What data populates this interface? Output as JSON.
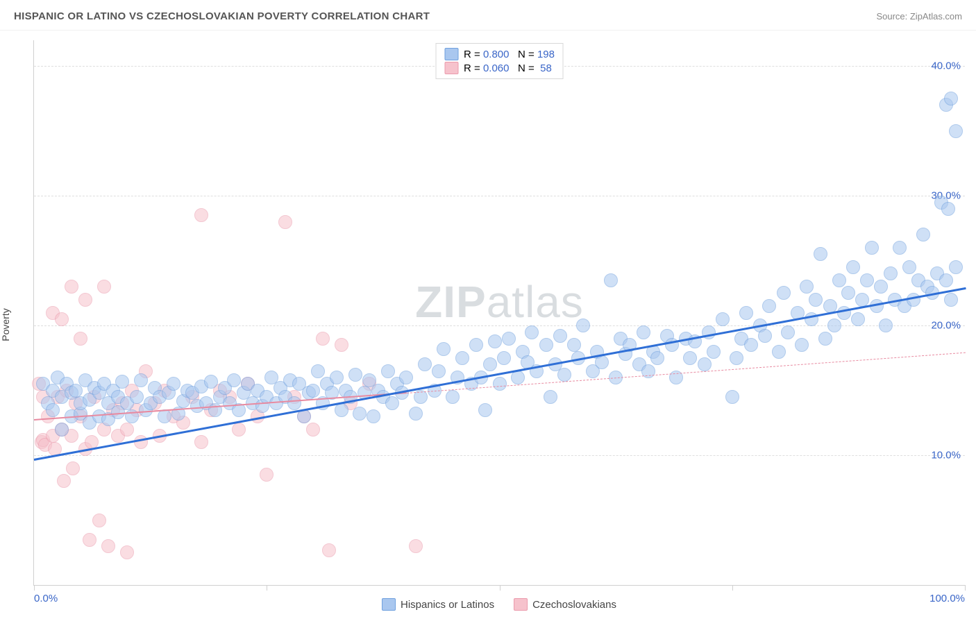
{
  "header": {
    "title": "HISPANIC OR LATINO VS CZECHOSLOVAKIAN POVERTY CORRELATION CHART",
    "source_prefix": "Source: ",
    "source": "ZipAtlas.com"
  },
  "ylabel": "Poverty",
  "watermark_bold": "ZIP",
  "watermark_light": "atlas",
  "chart": {
    "type": "scatter",
    "xlim": [
      0,
      100
    ],
    "ylim": [
      0,
      42
    ],
    "y_gridlines": [
      10,
      20,
      30,
      40
    ],
    "y_tick_labels": [
      "10.0%",
      "20.0%",
      "30.0%",
      "40.0%"
    ],
    "x_ticks": [
      0,
      25,
      50,
      75,
      100
    ],
    "x_tick_labels_shown": {
      "0": "0.0%",
      "100": "100.0%"
    },
    "background_color": "#ffffff",
    "grid_color": "#dedede",
    "axis_color": "#d0d0d0",
    "tick_label_color": "#3a66c8",
    "marker_radius": 10,
    "marker_opacity": 0.55,
    "marker_stroke_opacity": 0.9
  },
  "series": {
    "blue": {
      "label": "Hispanics or Latinos",
      "fill": "#a9c7ef",
      "stroke": "#6fa0de",
      "R": "0.800",
      "N": "198",
      "trend": {
        "x1": 0,
        "y1": 9.8,
        "x2": 100,
        "y2": 23.0,
        "solid_until_x": 100,
        "color": "#2f6fd6",
        "width": 3
      },
      "points": [
        [
          1,
          15.5
        ],
        [
          1.5,
          14
        ],
        [
          2,
          15
        ],
        [
          2,
          13.5
        ],
        [
          2.5,
          16
        ],
        [
          3,
          12
        ],
        [
          3,
          14.5
        ],
        [
          3.5,
          15.5
        ],
        [
          4,
          13
        ],
        [
          4,
          14.8
        ],
        [
          4.5,
          15
        ],
        [
          5,
          13.2
        ],
        [
          5,
          14
        ],
        [
          5.5,
          15.8
        ],
        [
          6,
          12.5
        ],
        [
          6,
          14.3
        ],
        [
          6.5,
          15.2
        ],
        [
          7,
          13
        ],
        [
          7,
          14.8
        ],
        [
          7.5,
          15.5
        ],
        [
          8,
          12.8
        ],
        [
          8,
          14
        ],
        [
          8.5,
          15
        ],
        [
          9,
          13.3
        ],
        [
          9,
          14.5
        ],
        [
          9.5,
          15.7
        ],
        [
          10,
          14
        ],
        [
          10.5,
          13
        ],
        [
          11,
          14.5
        ],
        [
          11.5,
          15.8
        ],
        [
          12,
          13.5
        ],
        [
          12.5,
          14
        ],
        [
          13,
          15.2
        ],
        [
          13.5,
          14.5
        ],
        [
          14,
          13
        ],
        [
          14.5,
          14.8
        ],
        [
          15,
          15.5
        ],
        [
          15.5,
          13.2
        ],
        [
          16,
          14.2
        ],
        [
          16.5,
          15
        ],
        [
          17,
          14.8
        ],
        [
          17.5,
          13.8
        ],
        [
          18,
          15.3
        ],
        [
          18.5,
          14
        ],
        [
          19,
          15.7
        ],
        [
          19.5,
          13.5
        ],
        [
          20,
          14.5
        ],
        [
          20.5,
          15.2
        ],
        [
          21,
          14
        ],
        [
          21.5,
          15.8
        ],
        [
          22,
          13.5
        ],
        [
          22.5,
          14.8
        ],
        [
          23,
          15.5
        ],
        [
          23.5,
          14
        ],
        [
          24,
          15
        ],
        [
          24.5,
          13.8
        ],
        [
          25,
          14.5
        ],
        [
          25.5,
          16
        ],
        [
          26,
          14
        ],
        [
          26.5,
          15.2
        ],
        [
          27,
          14.5
        ],
        [
          27.5,
          15.8
        ],
        [
          28,
          14
        ],
        [
          28.5,
          15.5
        ],
        [
          29,
          13
        ],
        [
          29.5,
          14.8
        ],
        [
          30,
          15
        ],
        [
          30.5,
          16.5
        ],
        [
          31,
          14
        ],
        [
          31.5,
          15.5
        ],
        [
          32,
          14.8
        ],
        [
          32.5,
          16
        ],
        [
          33,
          13.5
        ],
        [
          33.5,
          15
        ],
        [
          34,
          14.5
        ],
        [
          34.5,
          16.2
        ],
        [
          35,
          13.2
        ],
        [
          35.5,
          14.8
        ],
        [
          36,
          15.8
        ],
        [
          36.5,
          13
        ],
        [
          37,
          15
        ],
        [
          37.5,
          14.5
        ],
        [
          38,
          16.5
        ],
        [
          38.5,
          14
        ],
        [
          39,
          15.5
        ],
        [
          39.5,
          14.8
        ],
        [
          40,
          16
        ],
        [
          41,
          13.2
        ],
        [
          41.5,
          14.5
        ],
        [
          42,
          17
        ],
        [
          43,
          15
        ],
        [
          43.5,
          16.5
        ],
        [
          44,
          18.2
        ],
        [
          45,
          14.5
        ],
        [
          45.5,
          16
        ],
        [
          46,
          17.5
        ],
        [
          47,
          15.5
        ],
        [
          47.5,
          18.5
        ],
        [
          48,
          16
        ],
        [
          48.5,
          13.5
        ],
        [
          49,
          17
        ],
        [
          49.5,
          18.8
        ],
        [
          50,
          15.5
        ],
        [
          50.5,
          17.5
        ],
        [
          51,
          19
        ],
        [
          52,
          16
        ],
        [
          52.5,
          18
        ],
        [
          53,
          17.2
        ],
        [
          53.5,
          19.5
        ],
        [
          54,
          16.5
        ],
        [
          55,
          18.5
        ],
        [
          55.5,
          14.5
        ],
        [
          56,
          17
        ],
        [
          56.5,
          19.2
        ],
        [
          57,
          16.2
        ],
        [
          58,
          18.5
        ],
        [
          58.5,
          17.5
        ],
        [
          59,
          20
        ],
        [
          60,
          16.5
        ],
        [
          60.5,
          18
        ],
        [
          61,
          17.2
        ],
        [
          62,
          23.5
        ],
        [
          62.5,
          16
        ],
        [
          63,
          19
        ],
        [
          63.5,
          17.8
        ],
        [
          64,
          18.5
        ],
        [
          65,
          17
        ],
        [
          65.5,
          19.5
        ],
        [
          66,
          16.5
        ],
        [
          66.5,
          18
        ],
        [
          67,
          17.5
        ],
        [
          68,
          19.2
        ],
        [
          68.5,
          18.5
        ],
        [
          69,
          16
        ],
        [
          70,
          19
        ],
        [
          70.5,
          17.5
        ],
        [
          71,
          18.8
        ],
        [
          72,
          17
        ],
        [
          72.5,
          19.5
        ],
        [
          73,
          18
        ],
        [
          74,
          20.5
        ],
        [
          75,
          14.5
        ],
        [
          75.5,
          17.5
        ],
        [
          76,
          19
        ],
        [
          76.5,
          21
        ],
        [
          77,
          18.5
        ],
        [
          78,
          20
        ],
        [
          78.5,
          19.2
        ],
        [
          79,
          21.5
        ],
        [
          80,
          18
        ],
        [
          80.5,
          22.5
        ],
        [
          81,
          19.5
        ],
        [
          82,
          21
        ],
        [
          82.5,
          18.5
        ],
        [
          83,
          23
        ],
        [
          83.5,
          20.5
        ],
        [
          84,
          22
        ],
        [
          84.5,
          25.5
        ],
        [
          85,
          19
        ],
        [
          85.5,
          21.5
        ],
        [
          86,
          20
        ],
        [
          86.5,
          23.5
        ],
        [
          87,
          21
        ],
        [
          87.5,
          22.5
        ],
        [
          88,
          24.5
        ],
        [
          88.5,
          20.5
        ],
        [
          89,
          22
        ],
        [
          89.5,
          23.5
        ],
        [
          90,
          26
        ],
        [
          90.5,
          21.5
        ],
        [
          91,
          23
        ],
        [
          91.5,
          20
        ],
        [
          92,
          24
        ],
        [
          92.5,
          22
        ],
        [
          93,
          26
        ],
        [
          93.5,
          21.5
        ],
        [
          94,
          24.5
        ],
        [
          94.5,
          22
        ],
        [
          95,
          23.5
        ],
        [
          95.5,
          27
        ],
        [
          96,
          23
        ],
        [
          96.5,
          22.5
        ],
        [
          97,
          24
        ],
        [
          97.5,
          29.5
        ],
        [
          98,
          37
        ],
        [
          98,
          23.5
        ],
        [
          98.2,
          29
        ],
        [
          98.5,
          37.5
        ],
        [
          98.5,
          22
        ],
        [
          99,
          35
        ],
        [
          99,
          24.5
        ]
      ]
    },
    "pink": {
      "label": "Czechoslovakians",
      "fill": "#f6c2cc",
      "stroke": "#eb9aac",
      "R": "0.060",
      "N": "58",
      "trend": {
        "x1": 0,
        "y1": 12.8,
        "x2": 100,
        "y2": 18.0,
        "solid_until_x": 40,
        "color": "#e88aa0",
        "width": 2
      },
      "points": [
        [
          0.5,
          15.5
        ],
        [
          0.8,
          11
        ],
        [
          1,
          14.5
        ],
        [
          1,
          11.2
        ],
        [
          1.2,
          10.8
        ],
        [
          1.5,
          13
        ],
        [
          2,
          11.5
        ],
        [
          2,
          21
        ],
        [
          2.2,
          10.5
        ],
        [
          2.5,
          14.5
        ],
        [
          3,
          12
        ],
        [
          3,
          20.5
        ],
        [
          3.2,
          8
        ],
        [
          3.5,
          15
        ],
        [
          4,
          11.5
        ],
        [
          4,
          23
        ],
        [
          4.2,
          9
        ],
        [
          4.5,
          14
        ],
        [
          5,
          13
        ],
        [
          5,
          19
        ],
        [
          5.5,
          10.5
        ],
        [
          5.5,
          22
        ],
        [
          6,
          3.5
        ],
        [
          6.2,
          11
        ],
        [
          6.5,
          14.5
        ],
        [
          7,
          5
        ],
        [
          7.5,
          23
        ],
        [
          7.5,
          12
        ],
        [
          8,
          3
        ],
        [
          8.5,
          13.5
        ],
        [
          9,
          11.5
        ],
        [
          9.5,
          14
        ],
        [
          10,
          2.5
        ],
        [
          10,
          12
        ],
        [
          10.5,
          15
        ],
        [
          11,
          13.5
        ],
        [
          11.5,
          11
        ],
        [
          12,
          16.5
        ],
        [
          13,
          14
        ],
        [
          13.5,
          11.5
        ],
        [
          14,
          15
        ],
        [
          15,
          13
        ],
        [
          16,
          12.5
        ],
        [
          17,
          14.5
        ],
        [
          18,
          28.5
        ],
        [
          18,
          11
        ],
        [
          19,
          13.5
        ],
        [
          20,
          15
        ],
        [
          21,
          14.5
        ],
        [
          22,
          12
        ],
        [
          23,
          15.5
        ],
        [
          24,
          13
        ],
        [
          25,
          8.5
        ],
        [
          27,
          28
        ],
        [
          28,
          14.5
        ],
        [
          29,
          13
        ],
        [
          30,
          12
        ],
        [
          31,
          19
        ],
        [
          31.7,
          2.7
        ],
        [
          33,
          18.5
        ],
        [
          34,
          14
        ],
        [
          36,
          15.5
        ],
        [
          41,
          3
        ]
      ]
    }
  },
  "legend_top_labels": {
    "R": "R =",
    "N": "N ="
  },
  "legend_bottom": [
    {
      "key": "blue"
    },
    {
      "key": "pink"
    }
  ]
}
